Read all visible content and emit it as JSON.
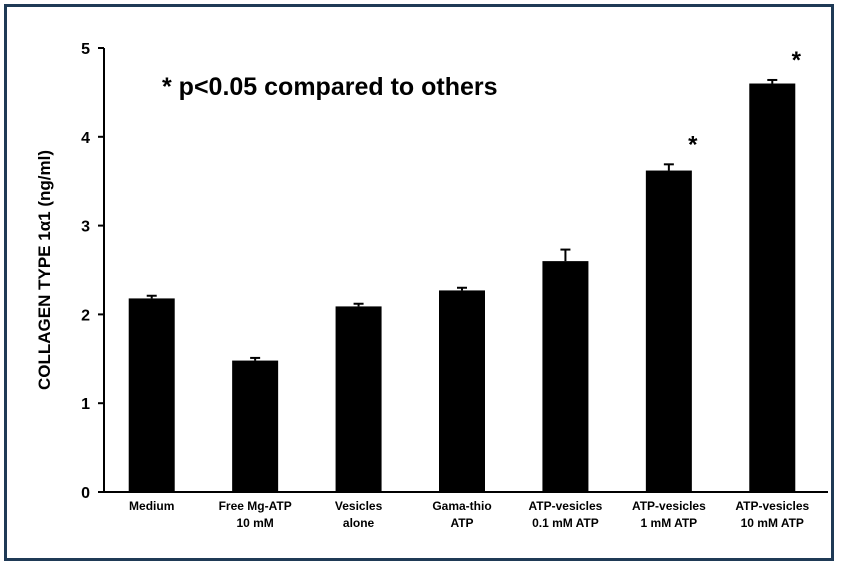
{
  "chart_data": {
    "type": "bar",
    "ylabel": "COLLAGEN TYPE 1α1 (ng/ml)",
    "ylim": [
      0,
      5
    ],
    "yticks": [
      0,
      1,
      2,
      3,
      4,
      5
    ],
    "annotation": "* p<0.05 compared to others",
    "categories": [
      [
        "Medium"
      ],
      [
        "Free Mg-ATP",
        "10 mM"
      ],
      [
        "Vesicles",
        "alone"
      ],
      [
        "Gama-thio",
        "ATP"
      ],
      [
        "ATP-vesicles",
        "0.1 mM ATP"
      ],
      [
        "ATP-vesicles",
        "1 mM ATP"
      ],
      [
        "ATP-vesicles",
        "10 mM ATP"
      ]
    ],
    "values": [
      2.18,
      1.48,
      2.09,
      2.27,
      2.6,
      3.62,
      4.6
    ],
    "errors": [
      0.03,
      0.03,
      0.03,
      0.03,
      0.13,
      0.07,
      0.04
    ],
    "significance": [
      "",
      "",
      "",
      "",
      "",
      "*",
      "*"
    ],
    "bar_color": "#000000",
    "grid": false,
    "legend": "none"
  }
}
